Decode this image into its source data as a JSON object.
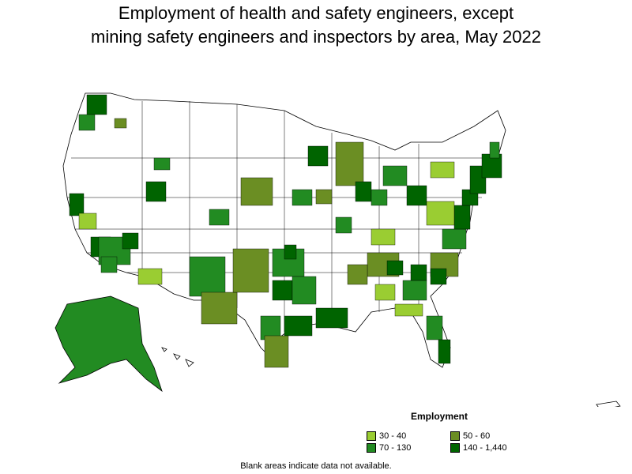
{
  "title_line1": "Employment of health and safety engineers, except",
  "title_line2": "mining safety engineers and inspectors by area, May 2022",
  "legend": {
    "title": "Employment",
    "items": [
      {
        "label": "30 - 40",
        "color": "#9acd32"
      },
      {
        "label": "50 - 60",
        "color": "#6b8e23"
      },
      {
        "label": "70 - 130",
        "color": "#228b22"
      },
      {
        "label": "140 - 1,440",
        "color": "#006400"
      }
    ]
  },
  "note": "Blank areas indicate data not available."
}
